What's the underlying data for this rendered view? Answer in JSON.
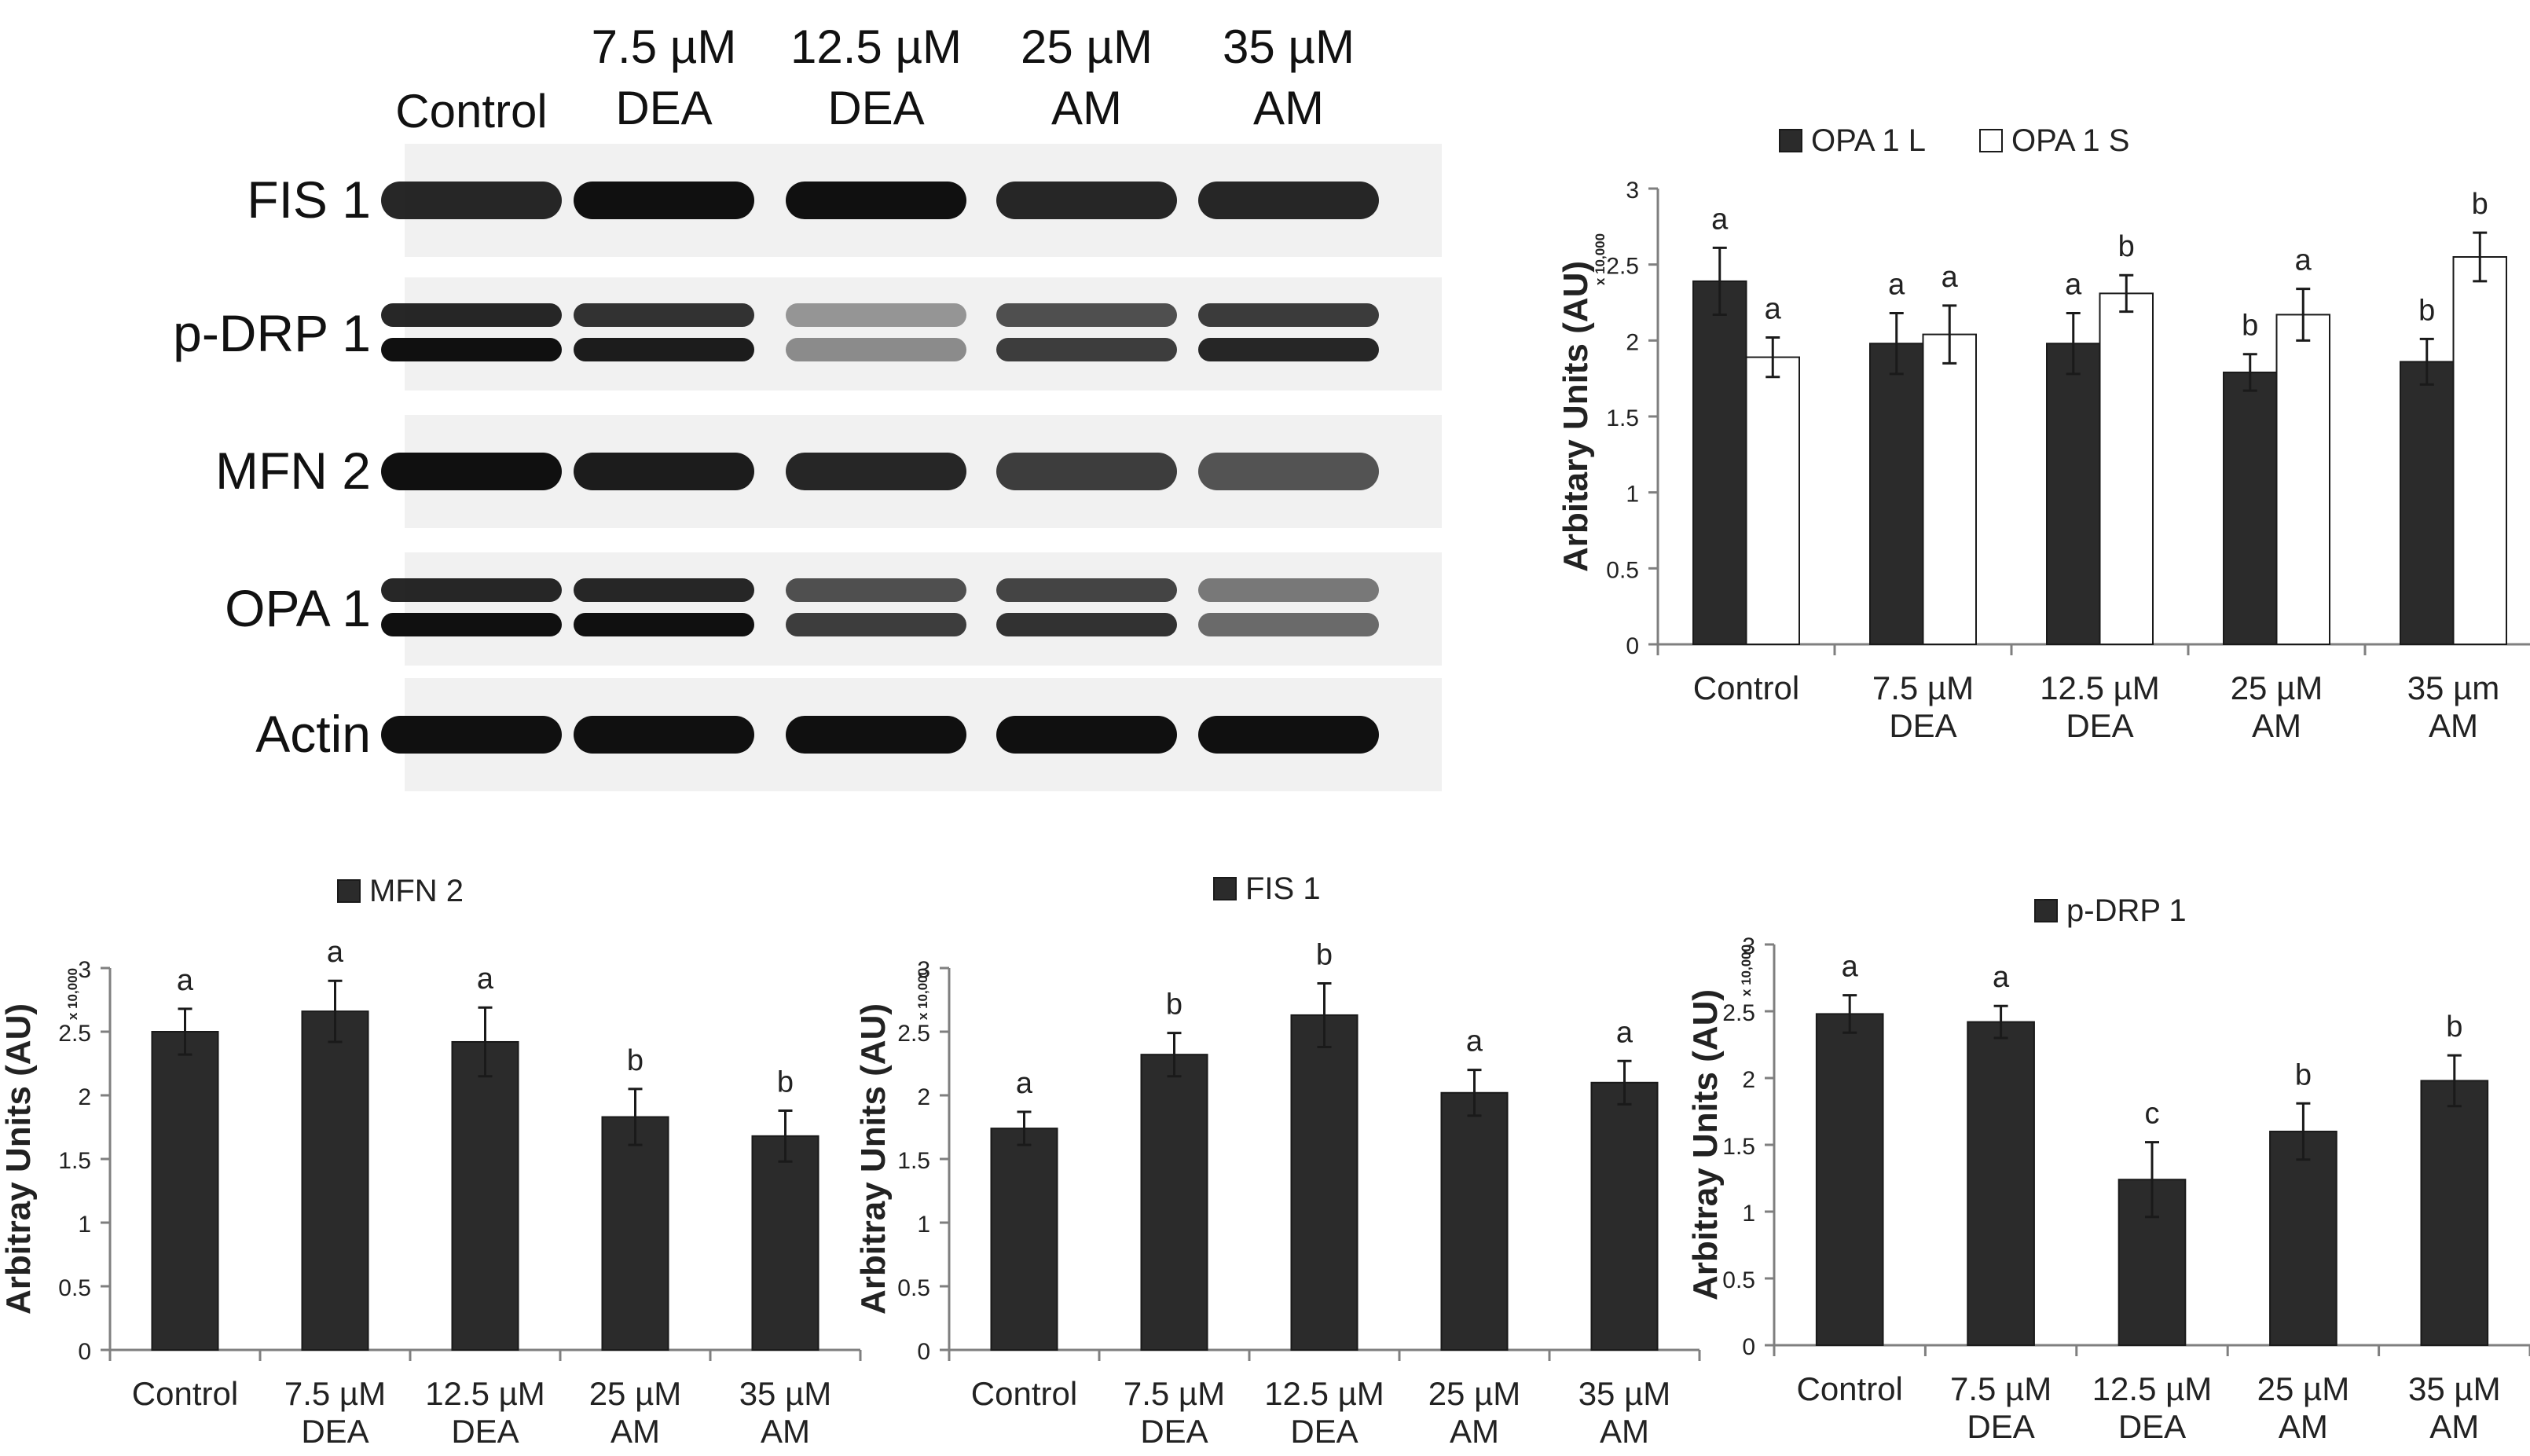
{
  "blot": {
    "lanes": [
      {
        "line1": "",
        "line2": "Control"
      },
      {
        "line1": "7.5 µM",
        "line2": "DEA"
      },
      {
        "line1": "12.5 µM",
        "line2": "DEA"
      },
      {
        "line1": "25 µM",
        "line2": "AM"
      },
      {
        "line1": "35 µM",
        "line2": "AM"
      }
    ],
    "proteins": [
      {
        "label": "FIS 1",
        "bands": 1,
        "intensity": [
          0.9,
          1.0,
          1.0,
          0.9,
          0.9
        ]
      },
      {
        "label": "p-DRP 1",
        "bands": 2,
        "intensity": [
          1.0,
          0.95,
          0.45,
          0.8,
          0.9
        ]
      },
      {
        "label": "MFN 2",
        "bands": 1,
        "intensity": [
          1.0,
          0.95,
          0.9,
          0.8,
          0.7
        ]
      },
      {
        "label": "OPA 1",
        "bands": 2,
        "intensity": [
          1.0,
          1.0,
          0.8,
          0.85,
          0.6
        ]
      },
      {
        "label": "Actin",
        "bands": 1,
        "intensity": [
          1.0,
          1.0,
          1.0,
          1.0,
          1.0
        ]
      }
    ]
  },
  "colors": {
    "bar_dark": "#2b2b2b",
    "bar_light": "#ffffff",
    "axis": "#7f7f7f",
    "band": "#101010"
  },
  "chart_data": [
    {
      "id": "opa1",
      "type": "bar",
      "title": "",
      "xlabel": "",
      "ylabel": "Arbitary Units (AU)",
      "yscale_note": "x 10,000",
      "ylim": [
        0,
        3
      ],
      "yticks": [
        "0",
        "0.5",
        "1",
        "1.5",
        "2",
        "2.5",
        "3"
      ],
      "categories": [
        [
          "Control",
          ""
        ],
        [
          "7.5 µM",
          "DEA"
        ],
        [
          "12.5 µM",
          "DEA"
        ],
        [
          "25 µM",
          "AM"
        ],
        [
          "35 µm",
          "AM"
        ]
      ],
      "legend_position": "top",
      "grid": false,
      "series": [
        {
          "name": "OPA 1 L",
          "color": "#2b2b2b",
          "values": [
            2.39,
            1.98,
            1.98,
            1.79,
            1.86
          ],
          "errors": [
            0.22,
            0.2,
            0.2,
            0.12,
            0.15
          ],
          "letters": [
            "a",
            "a",
            "a",
            "b",
            "b"
          ]
        },
        {
          "name": "OPA 1 S",
          "color": "#ffffff",
          "values": [
            1.89,
            2.04,
            2.31,
            2.17,
            2.55
          ],
          "errors": [
            0.13,
            0.19,
            0.12,
            0.17,
            0.16
          ],
          "letters": [
            "a",
            "a",
            "b",
            "a",
            "b"
          ]
        }
      ]
    },
    {
      "id": "mfn2",
      "type": "bar",
      "title": "",
      "xlabel": "",
      "ylabel": "Arbitray Units (AU)",
      "yscale_note": "x 10,000",
      "ylim": [
        0,
        3
      ],
      "yticks": [
        "0",
        "0.5",
        "1",
        "1.5",
        "2",
        "2.5",
        "3"
      ],
      "categories": [
        [
          "Control",
          ""
        ],
        [
          "7.5 µM",
          "DEA"
        ],
        [
          "12.5 µM",
          "DEA"
        ],
        [
          "25 µM",
          "AM"
        ],
        [
          "35 µM",
          "AM"
        ]
      ],
      "legend_position": "top",
      "grid": false,
      "series": [
        {
          "name": "MFN 2",
          "color": "#2b2b2b",
          "values": [
            2.5,
            2.66,
            2.42,
            1.83,
            1.68
          ],
          "errors": [
            0.18,
            0.24,
            0.27,
            0.22,
            0.2
          ],
          "letters": [
            "a",
            "a",
            "a",
            "b",
            "b"
          ]
        }
      ]
    },
    {
      "id": "fis1",
      "type": "bar",
      "title": "",
      "xlabel": "",
      "ylabel": "Arbitray Units (AU)",
      "yscale_note": "x 10,000",
      "ylim": [
        0,
        3
      ],
      "yticks": [
        "0",
        "0.5",
        "1",
        "1.5",
        "2",
        "2.5",
        "3"
      ],
      "categories": [
        [
          "Control",
          ""
        ],
        [
          "7.5 µM",
          "DEA"
        ],
        [
          "12.5 µM",
          "DEA"
        ],
        [
          "25 µM",
          "AM"
        ],
        [
          "35 µM",
          "AM"
        ]
      ],
      "legend_position": "top",
      "grid": false,
      "series": [
        {
          "name": "FIS 1",
          "color": "#2b2b2b",
          "values": [
            1.74,
            2.32,
            2.63,
            2.02,
            2.1
          ],
          "errors": [
            0.13,
            0.17,
            0.25,
            0.18,
            0.17
          ],
          "letters": [
            "a",
            "b",
            "b",
            "a",
            "a"
          ]
        }
      ]
    },
    {
      "id": "pdrp1",
      "type": "bar",
      "title": "",
      "xlabel": "",
      "ylabel": "Arbitray Units (AU)",
      "yscale_note": "x 10,000",
      "ylim": [
        0,
        3
      ],
      "yticks": [
        "0",
        "0.5",
        "1",
        "1.5",
        "2",
        "2.5",
        "3"
      ],
      "categories": [
        [
          "Control",
          ""
        ],
        [
          "7.5 µM",
          "DEA"
        ],
        [
          "12.5 µM",
          "DEA"
        ],
        [
          "25 µM",
          "AM"
        ],
        [
          "35 µM",
          "AM"
        ]
      ],
      "legend_position": "top",
      "grid": false,
      "series": [
        {
          "name": "p-DRP 1",
          "color": "#2b2b2b",
          "values": [
            2.48,
            2.42,
            1.24,
            1.6,
            1.98
          ],
          "errors": [
            0.14,
            0.12,
            0.28,
            0.21,
            0.19
          ],
          "letters": [
            "a",
            "a",
            "c",
            "b",
            "b"
          ]
        }
      ]
    }
  ]
}
